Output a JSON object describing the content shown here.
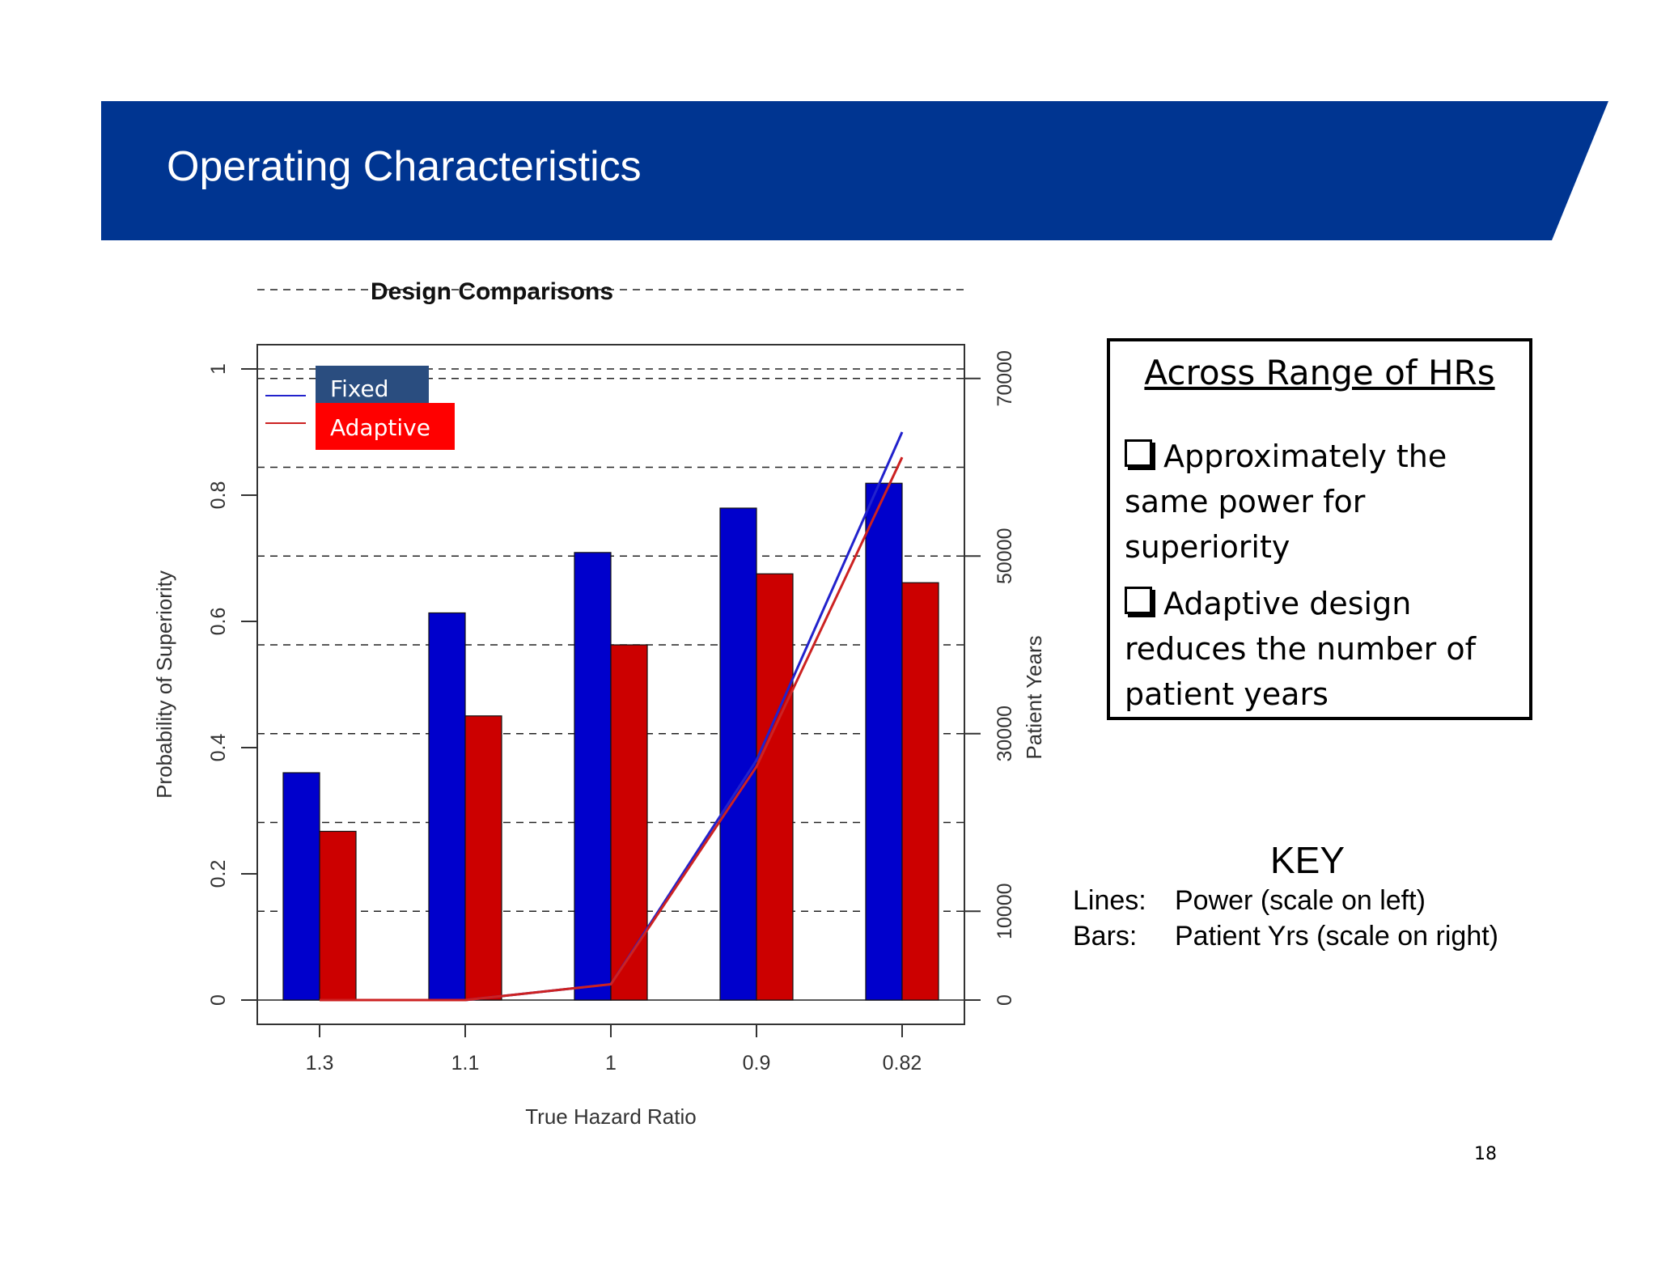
{
  "slide": {
    "title": "Operating Characteristics",
    "page_number": "18",
    "banner_color": "#003591"
  },
  "chart_data": {
    "type": "bar",
    "title": "Design Comparisons",
    "xlabel": "True Hazard Ratio",
    "ylabel_left": "Probability of Superiority",
    "ylabel_right": "Patient Years",
    "categories": [
      "1.3",
      "1.1",
      "1",
      "0.9",
      "0.82"
    ],
    "left_axis": {
      "ylim": [
        0,
        1
      ],
      "ticks": [
        "0",
        "0.2",
        "0.4",
        "0.6",
        "0.8",
        "1"
      ],
      "tick_values": [
        0,
        0.2,
        0.4,
        0.6,
        0.8,
        1
      ]
    },
    "right_axis": {
      "ylim": [
        0,
        80000
      ],
      "ticks": [
        "0",
        "10000",
        "30000",
        "50000",
        "70000"
      ],
      "tick_values": [
        0,
        10000,
        30000,
        50000,
        70000
      ]
    },
    "grid": "dashed horizontal",
    "legend_position": "top-left",
    "bar_series": [
      {
        "name": "Fixed",
        "color": "#0000CC",
        "values": [
          25600,
          43600,
          50400,
          55400,
          58200
        ]
      },
      {
        "name": "Adaptive",
        "color": "#CC0000",
        "values": [
          19000,
          32000,
          40000,
          48000,
          47000
        ]
      }
    ],
    "line_series": [
      {
        "name": "Fixed",
        "color": "#2222CC",
        "values": [
          0.0,
          0.0,
          0.025,
          0.38,
          0.9
        ]
      },
      {
        "name": "Adaptive",
        "color": "#CC2222",
        "values": [
          0.0,
          0.0,
          0.025,
          0.37,
          0.86
        ]
      }
    ],
    "legend": [
      {
        "label": "Fixed",
        "color": "#2A4D7F"
      },
      {
        "label": "Adaptive",
        "color": "#FF0000"
      }
    ]
  },
  "info_box": {
    "heading": "Across Range of HRs",
    "bullets": [
      "Approximately the same power for superiority",
      "Adaptive design reduces the number of patient years"
    ]
  },
  "key": {
    "title": "KEY",
    "lines_label": "Lines:",
    "lines_text": "Power (scale on left)",
    "bars_label": "Bars:",
    "bars_text": "Patient Yrs (scale on right)"
  }
}
